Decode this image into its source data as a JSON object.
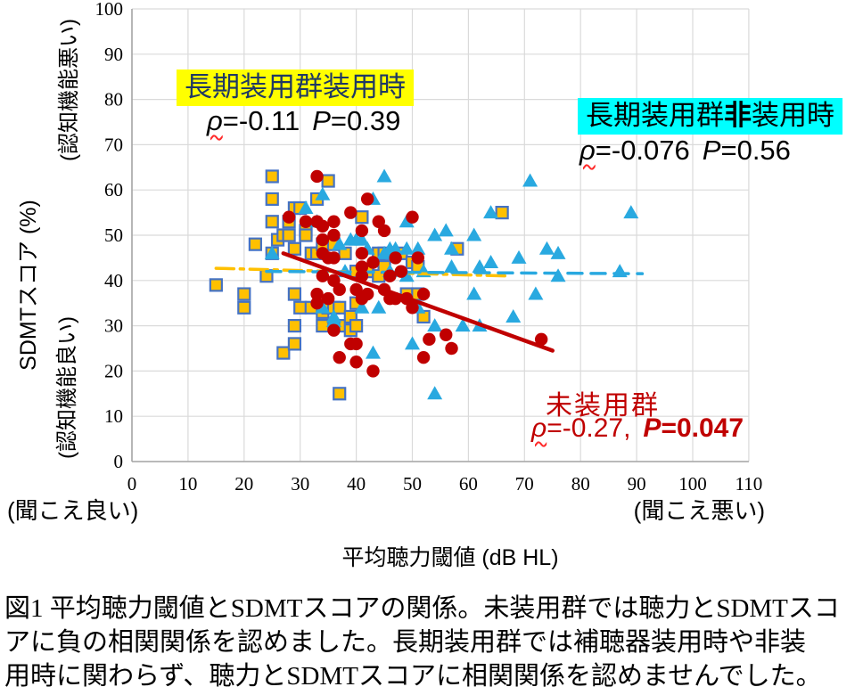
{
  "axes": {
    "x": {
      "title": "平均聴力閾値 (dB HL)",
      "label_left": "(聞こえ良い)",
      "label_right": "(聞こえ悪い)",
      "ticks": [
        0,
        10,
        20,
        30,
        40,
        50,
        60,
        70,
        80,
        90,
        100,
        110
      ]
    },
    "y": {
      "title": "SDMTスコア (%)",
      "label_top": "(認知機能悪い)",
      "label_bottom": "(認知機能良い)",
      "ticks": [
        0,
        10,
        20,
        30,
        40,
        50,
        60,
        70,
        80,
        90,
        100
      ]
    }
  },
  "annotations": {
    "aided": {
      "label": "長期装用群装用時",
      "rho_sym": "ρ",
      "rho_val": "=-0.11",
      "p_sym": "P",
      "p_val": "=0.39",
      "highlight_color": "#FFFF00",
      "text_color": "#1F3864"
    },
    "unaided": {
      "label_pre": "長期装用群",
      "label_bold": "非",
      "label_post": "装用時",
      "rho_sym": "ρ",
      "rho_val": "=-0.076",
      "p_sym": "P",
      "p_val": "=0.56",
      "highlight_color": "#00FFFF",
      "text_color": "#000000"
    },
    "nonuser": {
      "label": "未装用群",
      "rho_sym": "ρ",
      "rho_val": "=-0.27,",
      "p_sym": "P",
      "p_val": "=0.047",
      "text_color": "#C00000"
    }
  },
  "caption": {
    "line1": "図1 平均聴力閾値とSDMTスコアの関係。未装用群では聴力とSDMTスコ",
    "line2": "アに負の相関関係を認めました。長期装用群では補聴器装用時や非装",
    "line3": "用時に関わらず、聴力とSDMTスコアに相関関係を認めませんでした。"
  },
  "chart_data": {
    "type": "scatter",
    "xlabel": "平均聴力閾値 (dB HL)",
    "ylabel": "SDMTスコア (%)",
    "xlim": [
      0,
      110
    ],
    "ylim": [
      0,
      100
    ],
    "x_tick_step": 10,
    "y_tick_step": 10,
    "grid": true,
    "grid_color": "#DADADA",
    "axis_color": "#A6A6A6",
    "series": [
      {
        "name": "長期装用群装用時",
        "marker": "square",
        "color": "#FFC000",
        "border_color": "#4472C4",
        "rho": -0.11,
        "p": 0.39,
        "trendline": {
          "style": "dashdot",
          "color": "#FFC000",
          "from": [
            15,
            42.7
          ],
          "to": [
            67,
            41.0
          ]
        },
        "points": [
          [
            15,
            39
          ],
          [
            20,
            37
          ],
          [
            20,
            34
          ],
          [
            22,
            48
          ],
          [
            24,
            41
          ],
          [
            25,
            63
          ],
          [
            25,
            58
          ],
          [
            25,
            53
          ],
          [
            25,
            46
          ],
          [
            26,
            49
          ],
          [
            27,
            50
          ],
          [
            27,
            24
          ],
          [
            28,
            53
          ],
          [
            28,
            50
          ],
          [
            29,
            56
          ],
          [
            29,
            47
          ],
          [
            29,
            37
          ],
          [
            29,
            30
          ],
          [
            29,
            26
          ],
          [
            30,
            56
          ],
          [
            30,
            34
          ],
          [
            31,
            51
          ],
          [
            31,
            50
          ],
          [
            32,
            46
          ],
          [
            32,
            34
          ],
          [
            33,
            58
          ],
          [
            33,
            46
          ],
          [
            34,
            48
          ],
          [
            34,
            33
          ],
          [
            34,
            30
          ],
          [
            35,
            62
          ],
          [
            35,
            34
          ],
          [
            36,
            48
          ],
          [
            36,
            34
          ],
          [
            37,
            34
          ],
          [
            37,
            15
          ],
          [
            38,
            46
          ],
          [
            38,
            30
          ],
          [
            39,
            32
          ],
          [
            39,
            29
          ],
          [
            40,
            42
          ],
          [
            40,
            35
          ],
          [
            40,
            30
          ],
          [
            41,
            54
          ],
          [
            42,
            42
          ],
          [
            44,
            46
          ],
          [
            44,
            41
          ],
          [
            45,
            46
          ],
          [
            45,
            43
          ],
          [
            48,
            46
          ],
          [
            49,
            37
          ],
          [
            50,
            44
          ],
          [
            51,
            37
          ],
          [
            51,
            43
          ],
          [
            52,
            32
          ],
          [
            58,
            47
          ],
          [
            66,
            55
          ]
        ]
      },
      {
        "name": "長期装用群非装用時",
        "marker": "triangle",
        "color": "#29A9E0",
        "rho": -0.076,
        "p": 0.56,
        "trendline": {
          "style": "dashed",
          "color": "#29A9E0",
          "from": [
            24,
            42.0
          ],
          "to": [
            91,
            41.5
          ]
        },
        "points": [
          [
            25,
            46
          ],
          [
            31,
            56
          ],
          [
            33,
            53
          ],
          [
            34,
            59
          ],
          [
            34,
            34
          ],
          [
            36,
            32
          ],
          [
            36,
            31
          ],
          [
            37,
            48
          ],
          [
            38,
            42
          ],
          [
            39,
            49
          ],
          [
            40,
            49
          ],
          [
            41,
            49
          ],
          [
            41,
            34
          ],
          [
            42,
            47
          ],
          [
            43,
            58
          ],
          [
            43,
            24
          ],
          [
            44,
            34
          ],
          [
            45,
            63
          ],
          [
            45,
            46
          ],
          [
            46,
            47
          ],
          [
            46,
            42
          ],
          [
            47,
            47
          ],
          [
            49,
            53
          ],
          [
            49,
            47
          ],
          [
            49,
            41
          ],
          [
            50,
            26
          ],
          [
            51,
            47
          ],
          [
            51,
            34
          ],
          [
            52,
            42
          ],
          [
            54,
            50
          ],
          [
            54,
            30
          ],
          [
            54,
            15
          ],
          [
            56,
            51
          ],
          [
            57,
            47
          ],
          [
            57,
            43
          ],
          [
            59,
            30
          ],
          [
            61,
            50
          ],
          [
            61,
            37
          ],
          [
            62,
            43
          ],
          [
            62,
            30
          ],
          [
            64,
            55
          ],
          [
            64,
            44
          ],
          [
            68,
            32
          ],
          [
            69,
            45
          ],
          [
            71,
            62
          ],
          [
            72,
            37
          ],
          [
            74,
            47
          ],
          [
            76,
            46
          ],
          [
            76,
            41
          ],
          [
            87,
            42
          ],
          [
            89,
            55
          ]
        ]
      },
      {
        "name": "未装用群",
        "marker": "circle",
        "color": "#C00000",
        "rho": -0.27,
        "p": 0.047,
        "trendline": {
          "style": "solid",
          "color": "#C00000",
          "from": [
            27,
            46.0
          ],
          "to": [
            75,
            24.5
          ]
        },
        "points": [
          [
            28,
            54
          ],
          [
            31,
            53
          ],
          [
            33,
            63
          ],
          [
            33,
            53
          ],
          [
            33,
            37
          ],
          [
            33,
            35
          ],
          [
            34,
            52
          ],
          [
            34,
            49
          ],
          [
            34,
            46
          ],
          [
            34,
            41
          ],
          [
            35,
            45
          ],
          [
            35,
            36
          ],
          [
            36,
            53
          ],
          [
            36,
            50
          ],
          [
            36,
            45
          ],
          [
            36,
            40
          ],
          [
            36,
            29
          ],
          [
            37,
            38
          ],
          [
            37,
            23
          ],
          [
            39,
            55
          ],
          [
            39,
            26
          ],
          [
            40,
            38
          ],
          [
            40,
            26
          ],
          [
            40,
            22
          ],
          [
            41,
            51
          ],
          [
            41,
            46
          ],
          [
            41,
            43
          ],
          [
            41,
            41
          ],
          [
            41,
            36
          ],
          [
            42,
            58
          ],
          [
            42,
            37
          ],
          [
            43,
            44
          ],
          [
            43,
            20
          ],
          [
            44,
            53
          ],
          [
            45,
            51
          ],
          [
            45,
            38
          ],
          [
            46,
            41
          ],
          [
            46,
            36
          ],
          [
            47,
            45
          ],
          [
            47,
            36
          ],
          [
            48,
            42
          ],
          [
            49,
            36
          ],
          [
            50,
            54
          ],
          [
            50,
            34
          ],
          [
            51,
            45
          ],
          [
            52,
            37
          ],
          [
            52,
            23
          ],
          [
            53,
            27
          ],
          [
            56,
            28
          ],
          [
            57,
            25
          ],
          [
            73,
            27
          ]
        ]
      }
    ]
  }
}
